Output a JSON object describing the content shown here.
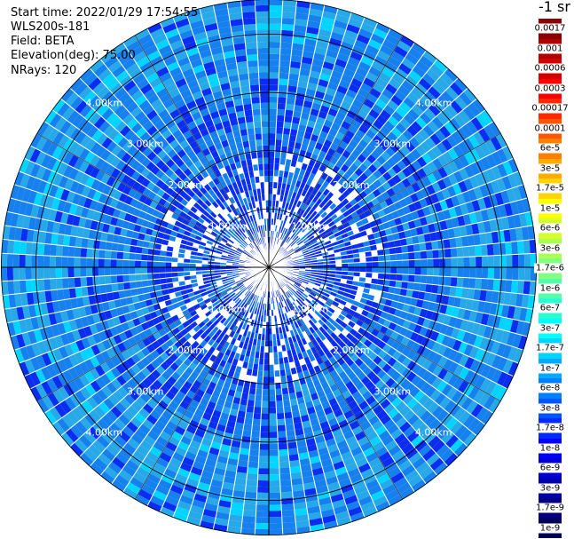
{
  "header": {
    "start_time": "Start time: 2022/01/29 17:54:55",
    "instrument": "WLS200s-181",
    "field": "Field: BETA",
    "elevation": "Elevation(deg): 75.00",
    "nrays": "NRays: 120"
  },
  "colorbar": {
    "unit": "-1 sr",
    "levels": [
      {
        "label": "0.0017",
        "color": "#8b0000"
      },
      {
        "label": "0.001",
        "color": "#b00000"
      },
      {
        "label": "0.0006",
        "color": "#d40000"
      },
      {
        "label": "0.0003",
        "color": "#ff0000"
      },
      {
        "label": "0.00017",
        "color": "#ff2a00"
      },
      {
        "label": "0.0001",
        "color": "#ff5500"
      },
      {
        "label": "6e-5",
        "color": "#ff8000"
      },
      {
        "label": "3e-5",
        "color": "#ffaa00"
      },
      {
        "label": "1.7e-5",
        "color": "#ffd400"
      },
      {
        "label": "1e-5",
        "color": "#ffff00"
      },
      {
        "label": "6e-6",
        "color": "#d4ff2a"
      },
      {
        "label": "3e-6",
        "color": "#aaff55"
      },
      {
        "label": "1.7e-6",
        "color": "#80ff80"
      },
      {
        "label": "1e-6",
        "color": "#55ffaa"
      },
      {
        "label": "6e-7",
        "color": "#2affd4"
      },
      {
        "label": "3e-7",
        "color": "#00ffff"
      },
      {
        "label": "1.7e-7",
        "color": "#00d4ff"
      },
      {
        "label": "1e-7",
        "color": "#00aaff"
      },
      {
        "label": "6e-8",
        "color": "#0080ff"
      },
      {
        "label": "3e-8",
        "color": "#0055ff"
      },
      {
        "label": "1.7e-8",
        "color": "#002aff"
      },
      {
        "label": "1e-8",
        "color": "#0000ff"
      },
      {
        "label": "6e-9",
        "color": "#0000d4"
      },
      {
        "label": "3e-9",
        "color": "#0000aa"
      },
      {
        "label": "1.7e-9",
        "color": "#000080"
      },
      {
        "label": "1e-9",
        "color": "#000055"
      }
    ]
  },
  "chart_data": {
    "type": "heatmap",
    "projection": "polar",
    "n_rays": 120,
    "max_range_km": 4.6,
    "ring_ranges_km": [
      1.0,
      2.0,
      3.0,
      4.0
    ],
    "ring_labels": [
      "1.00km",
      "2.00km",
      "3.00km",
      "4.00km"
    ],
    "field": "BETA",
    "elevation_deg": 75.0,
    "dominant_levels": [
      "1e-8",
      "6e-8",
      "3e-7",
      "1e-7"
    ],
    "palette": {
      "near": "#0a2df0",
      "mid": "#1580ee",
      "far": "#27a8e8",
      "accent": "#00d4ff",
      "bright": "#40e0ff"
    }
  }
}
